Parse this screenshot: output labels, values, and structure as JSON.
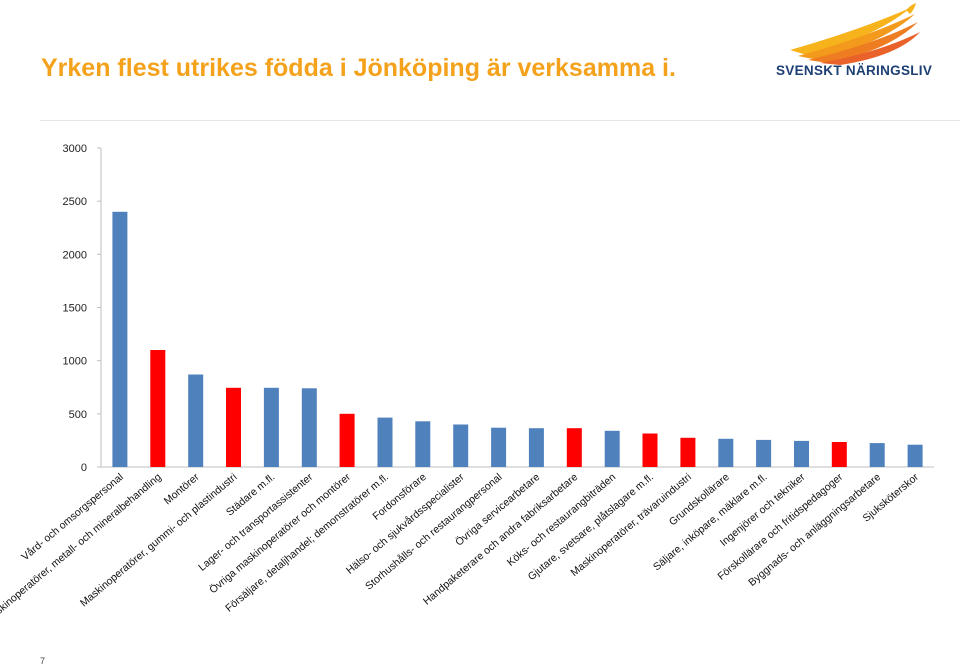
{
  "header": {
    "title": "Yrken flest utrikes födda i Jönköping är verksamma i.",
    "logo_text": "SVENSKT NÄRINGSLIV"
  },
  "footer": {
    "page_number": "7"
  },
  "colors": {
    "title": "#f4a21b",
    "blue_bar": "#4f81bd",
    "red_bar": "#ff0000",
    "logo_text": "#1d3f73"
  },
  "chart_data": {
    "type": "bar",
    "title": "",
    "xlabel": "",
    "ylabel": "",
    "ylim": [
      0,
      3000
    ],
    "yticks": [
      "0",
      "500",
      "1000",
      "1500",
      "2000",
      "2500",
      "3000"
    ],
    "grid": false,
    "legend": "none",
    "categories": [
      "Vård- och omsorgspersonal",
      "Maskinoperatörer, metall- och mineralbehandling",
      "Montörer",
      "Maskinoperatörer, gummi- och plastindustri",
      "Städare m.fl.",
      "Lager- och transportassistenter",
      "Övriga maskinoperatörer och montörer",
      "Försäljare, detaljhandel; demonstratörer m.fl.",
      "Fordonsförare",
      "Hälso- och sjukvårdsspecialister",
      "Storhushålls- och restaurangpersonal",
      "Övriga servicearbetare",
      "Handpaketerare och andra fabriksarbetare",
      "Köks- och restaurangbiträden",
      "Gjutare, svetsare, plåtslagare m.fl.",
      "Maskinoperatörer, trävaruindustri",
      "Grundskollärare",
      "Säljare, inköpare, mäklare m.fl.",
      "Ingenjörer och tekniker",
      "Förskollärare och fritidspedagoger",
      "Byggnads- och anläggningsarbetare",
      "Sjuksköterskor"
    ],
    "values": [
      2400,
      1100,
      870,
      745,
      745,
      740,
      500,
      465,
      430,
      400,
      370,
      365,
      365,
      340,
      315,
      275,
      265,
      255,
      245,
      235,
      225,
      210
    ],
    "bar_colors": [
      "blue",
      "red",
      "blue",
      "red",
      "blue",
      "blue",
      "red",
      "blue",
      "blue",
      "blue",
      "blue",
      "blue",
      "red",
      "blue",
      "red",
      "red",
      "blue",
      "blue",
      "blue",
      "red",
      "blue",
      "blue"
    ]
  }
}
